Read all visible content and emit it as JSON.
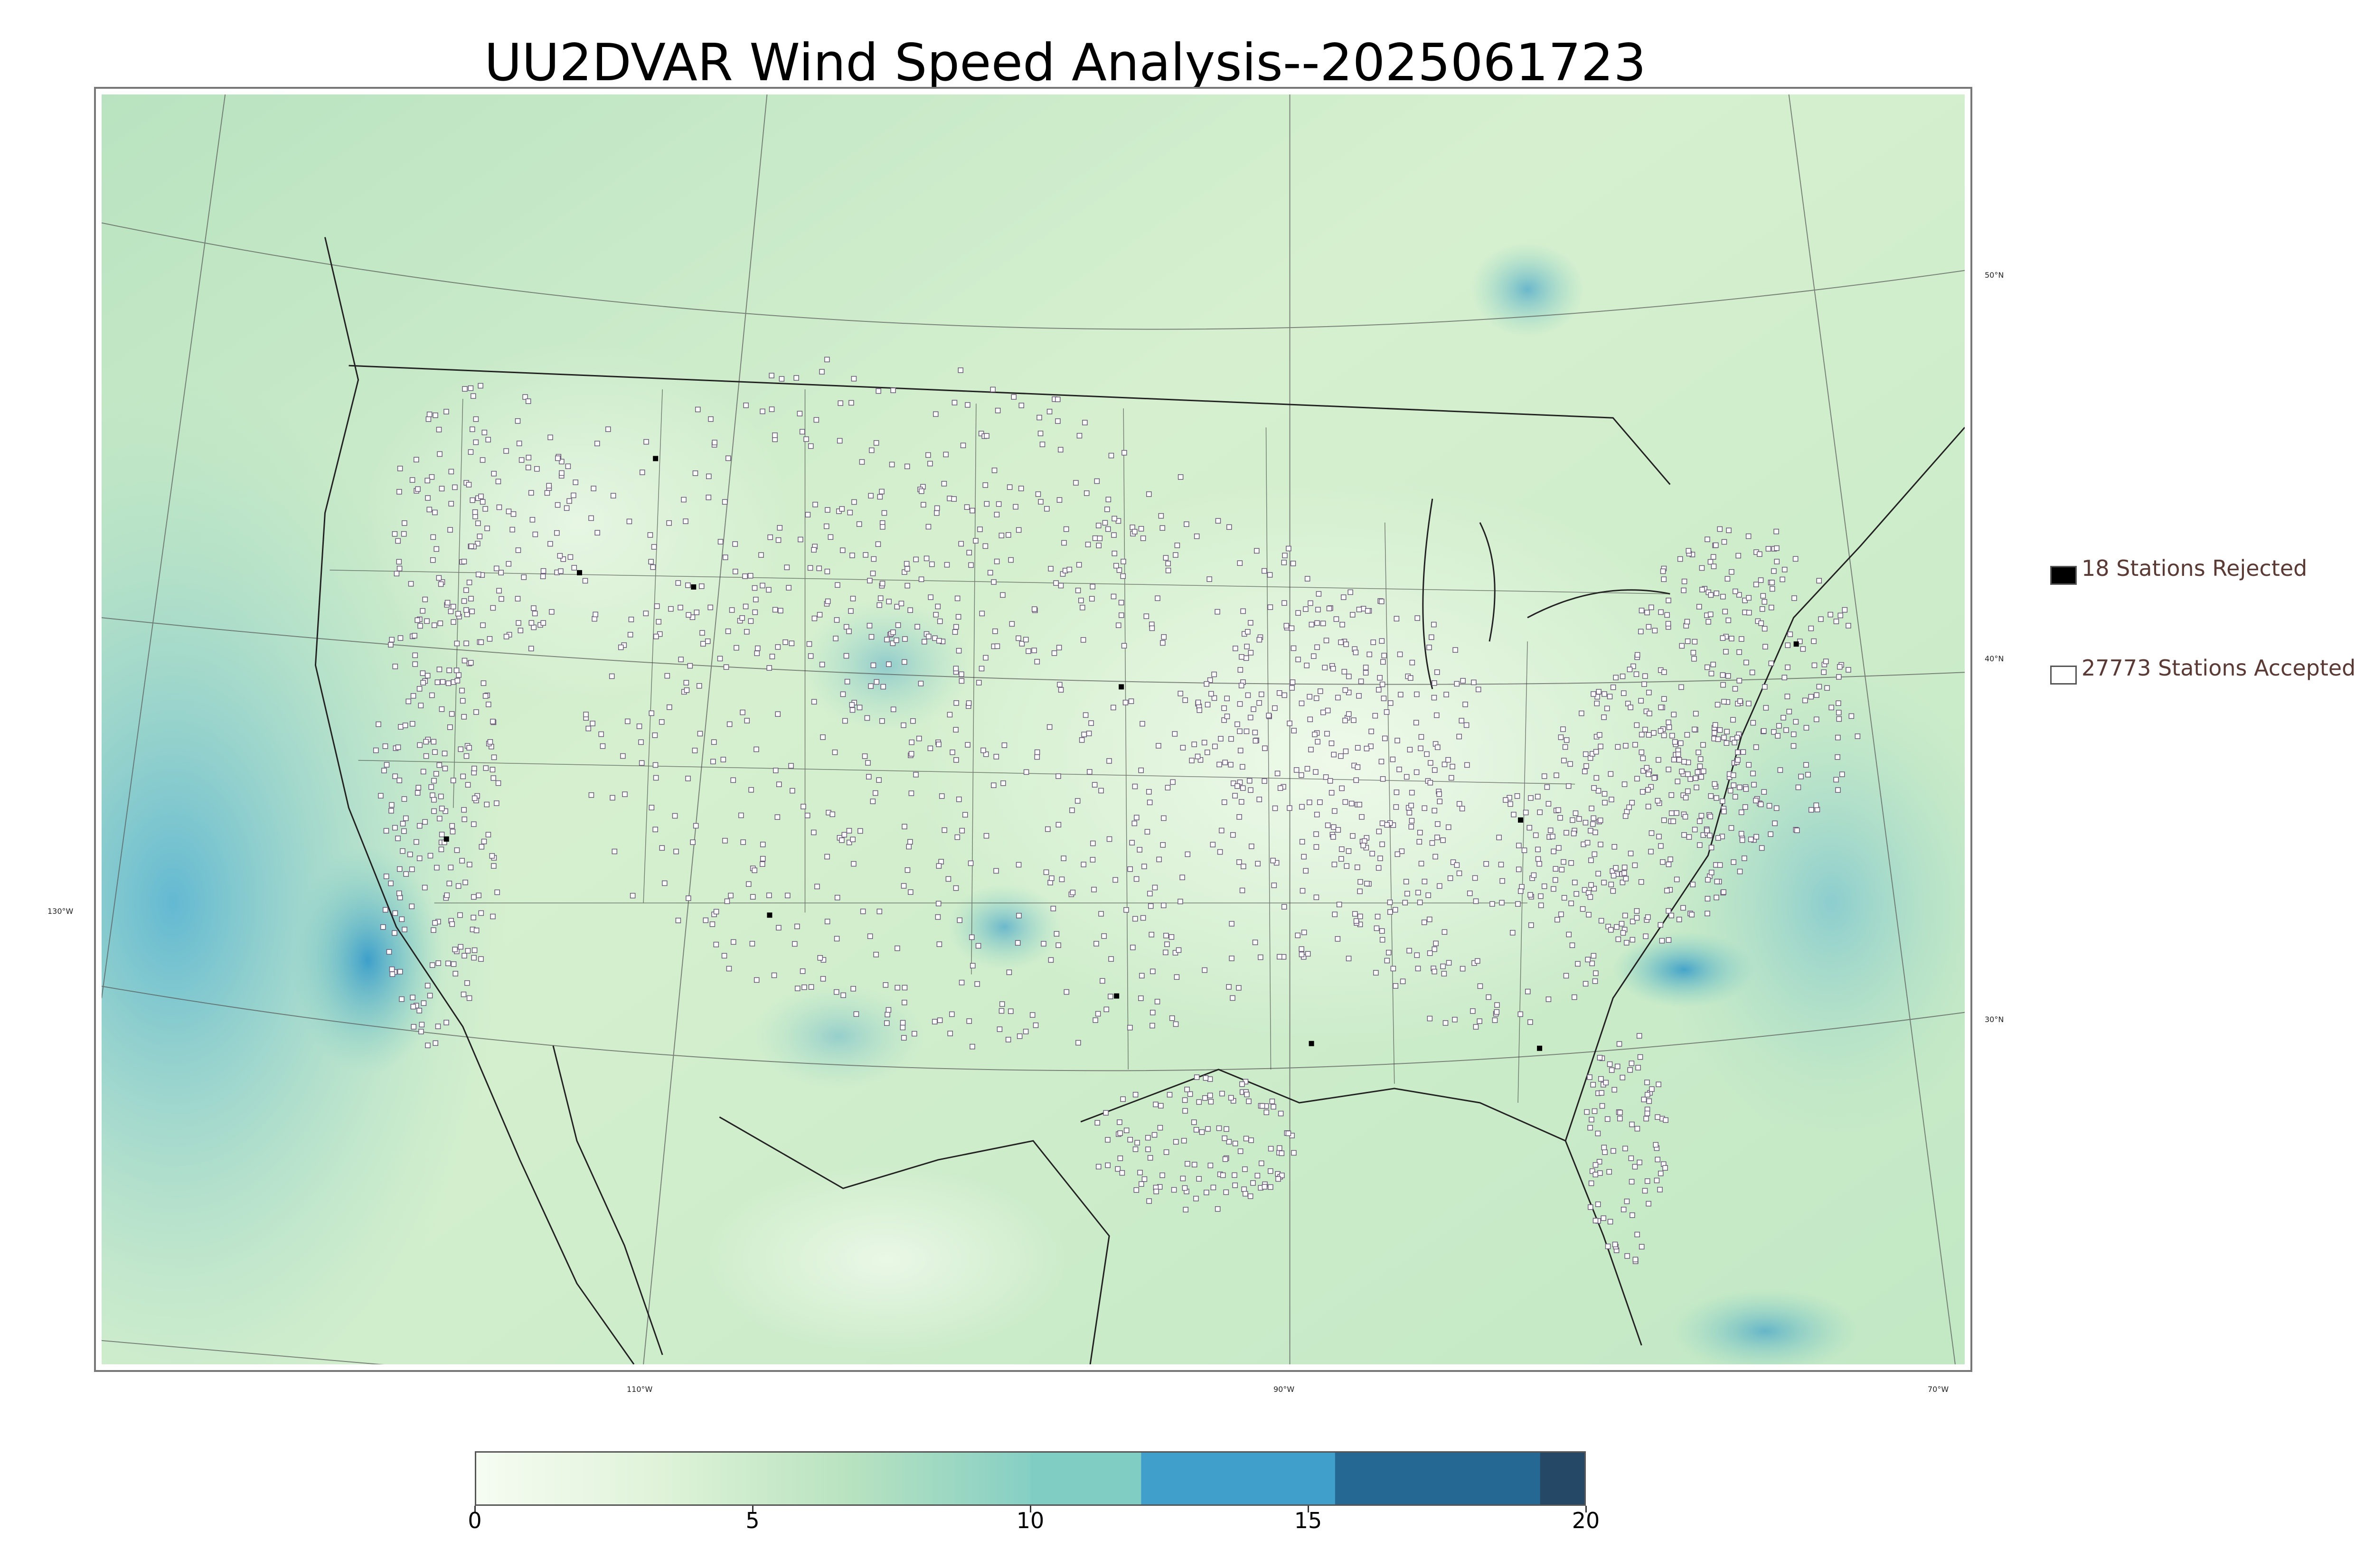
{
  "title": "UU2DVAR Wind Speed Analysis--2025061723",
  "map": {
    "lon_labels": [
      "110°W",
      "90°W",
      "70°W",
      "130°W"
    ],
    "lat_labels": [
      "50°N",
      "40°N",
      "30°N"
    ],
    "colors": {
      "calm": "#f4fbef",
      "light": "#d6f0cf",
      "moderate": "#a9dcb9",
      "strong": "#6fc0c6",
      "stronger": "#3e9fca",
      "strongest": "#25648f",
      "max": "#244866",
      "station_outline": "#6a5a78",
      "boundary": "#222222"
    }
  },
  "legend": {
    "rejected_label": "18 Stations Rejected",
    "accepted_label": "27773 Stations Accepted",
    "rejected_color": "#000000",
    "accepted_color": "#ffffff"
  },
  "colorbar": {
    "ticks": [
      "0",
      "5",
      "10",
      "15",
      "20"
    ],
    "range": [
      0,
      20
    ],
    "bins": [
      {
        "from": 0,
        "to": 10,
        "colors": [
          "#f6fcf2",
          "#dff3d9",
          "#b9e3c0",
          "#86cfc4"
        ]
      },
      {
        "from": 10,
        "to": 12,
        "colors": [
          "#7fcdc3"
        ]
      },
      {
        "from": 12,
        "to": 15.5,
        "colors": [
          "#40a0cb"
        ]
      },
      {
        "from": 15.5,
        "to": 19.2,
        "colors": [
          "#256893"
        ]
      },
      {
        "from": 19.2,
        "to": 20,
        "colors": [
          "#244866"
        ]
      }
    ]
  }
}
